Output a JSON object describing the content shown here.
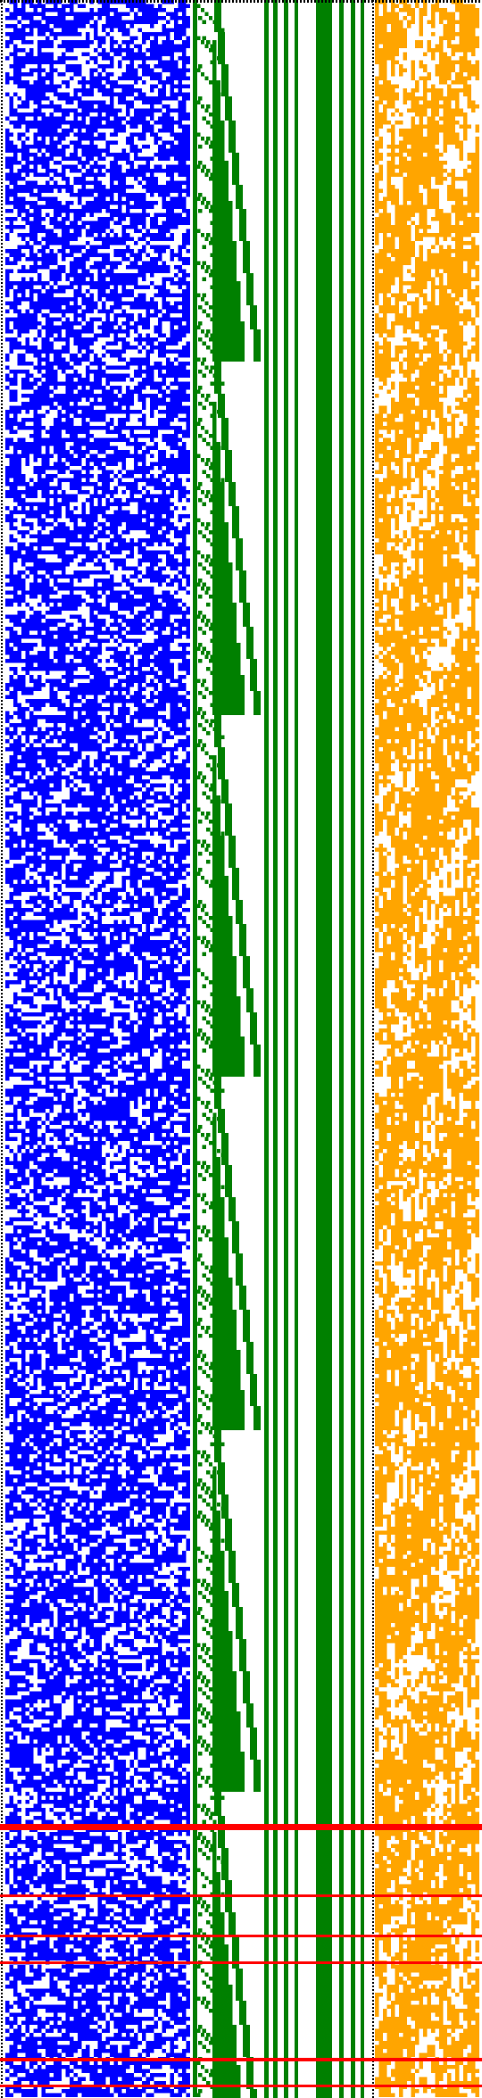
{
  "colors": {
    "background": "#ffffff",
    "blue": "#0000ff",
    "green": "#008000",
    "orange": "#ffa500",
    "red": "#ff0000",
    "border": "#000000"
  },
  "figure": {
    "kind": "cellular-automaton-style bitmap",
    "panels": [
      "blue-noise-panel",
      "green-staircase-panel",
      "orange-pattern-panel"
    ],
    "has_dotted_border": true,
    "has_red_horizontal_markers": true
  }
}
